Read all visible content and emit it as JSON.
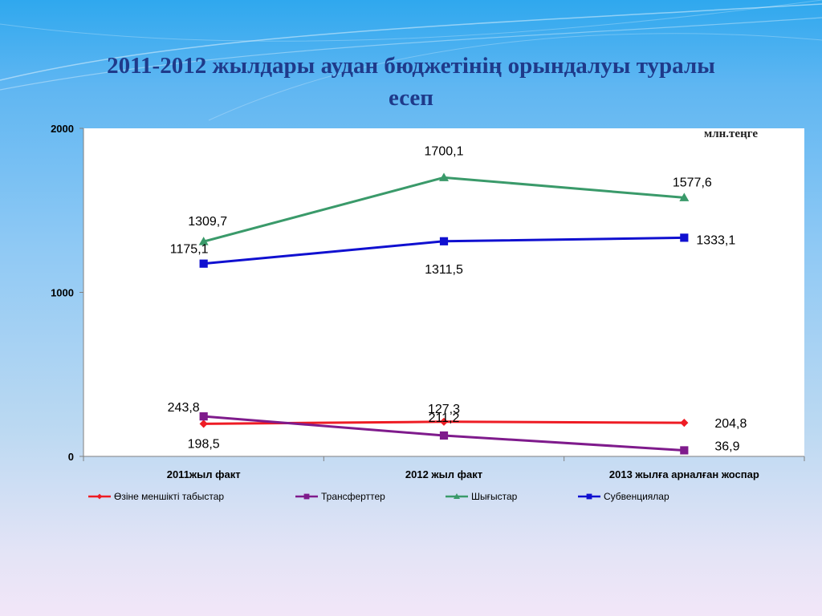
{
  "slide": {
    "title_line1": "2011-2012 жылдары аудан бюджетінің орындалуы туралы",
    "title_line2": "есеп"
  },
  "chart_data": {
    "type": "line",
    "unit": "млн.теңге",
    "categories": [
      "2011жыл факт",
      "2012 жыл факт",
      "2013 жылға арналған жоспар"
    ],
    "ylim": [
      0,
      2000
    ],
    "yticks": [
      0,
      1000,
      2000
    ],
    "grid": false,
    "legend_position": "bottom",
    "series": [
      {
        "name": "Өзіне меншікті табыстар",
        "color": "#ee1c24",
        "marker": "diamond",
        "values": [
          198.5,
          211.2,
          204.8
        ],
        "labels": [
          "198,5",
          "211,2",
          "204,8"
        ]
      },
      {
        "name": "Трансферттер",
        "color": "#7f1b8c",
        "marker": "square",
        "values": [
          243.8,
          127.3,
          36.9
        ],
        "labels": [
          "243,8",
          "127,3",
          "36,9"
        ]
      },
      {
        "name": "Шығыстар",
        "color": "#3a9a6a",
        "marker": "triangle",
        "values": [
          1309.7,
          1700.1,
          1577.6
        ],
        "labels": [
          "1309,7",
          "1700,1",
          "1577,6"
        ]
      },
      {
        "name": "Субвенциялар",
        "color": "#1010d0",
        "marker": "square",
        "values": [
          1175.1,
          1311.5,
          1333.1
        ],
        "labels": [
          "1175,1",
          "1311,5",
          "1333,1"
        ]
      }
    ]
  }
}
